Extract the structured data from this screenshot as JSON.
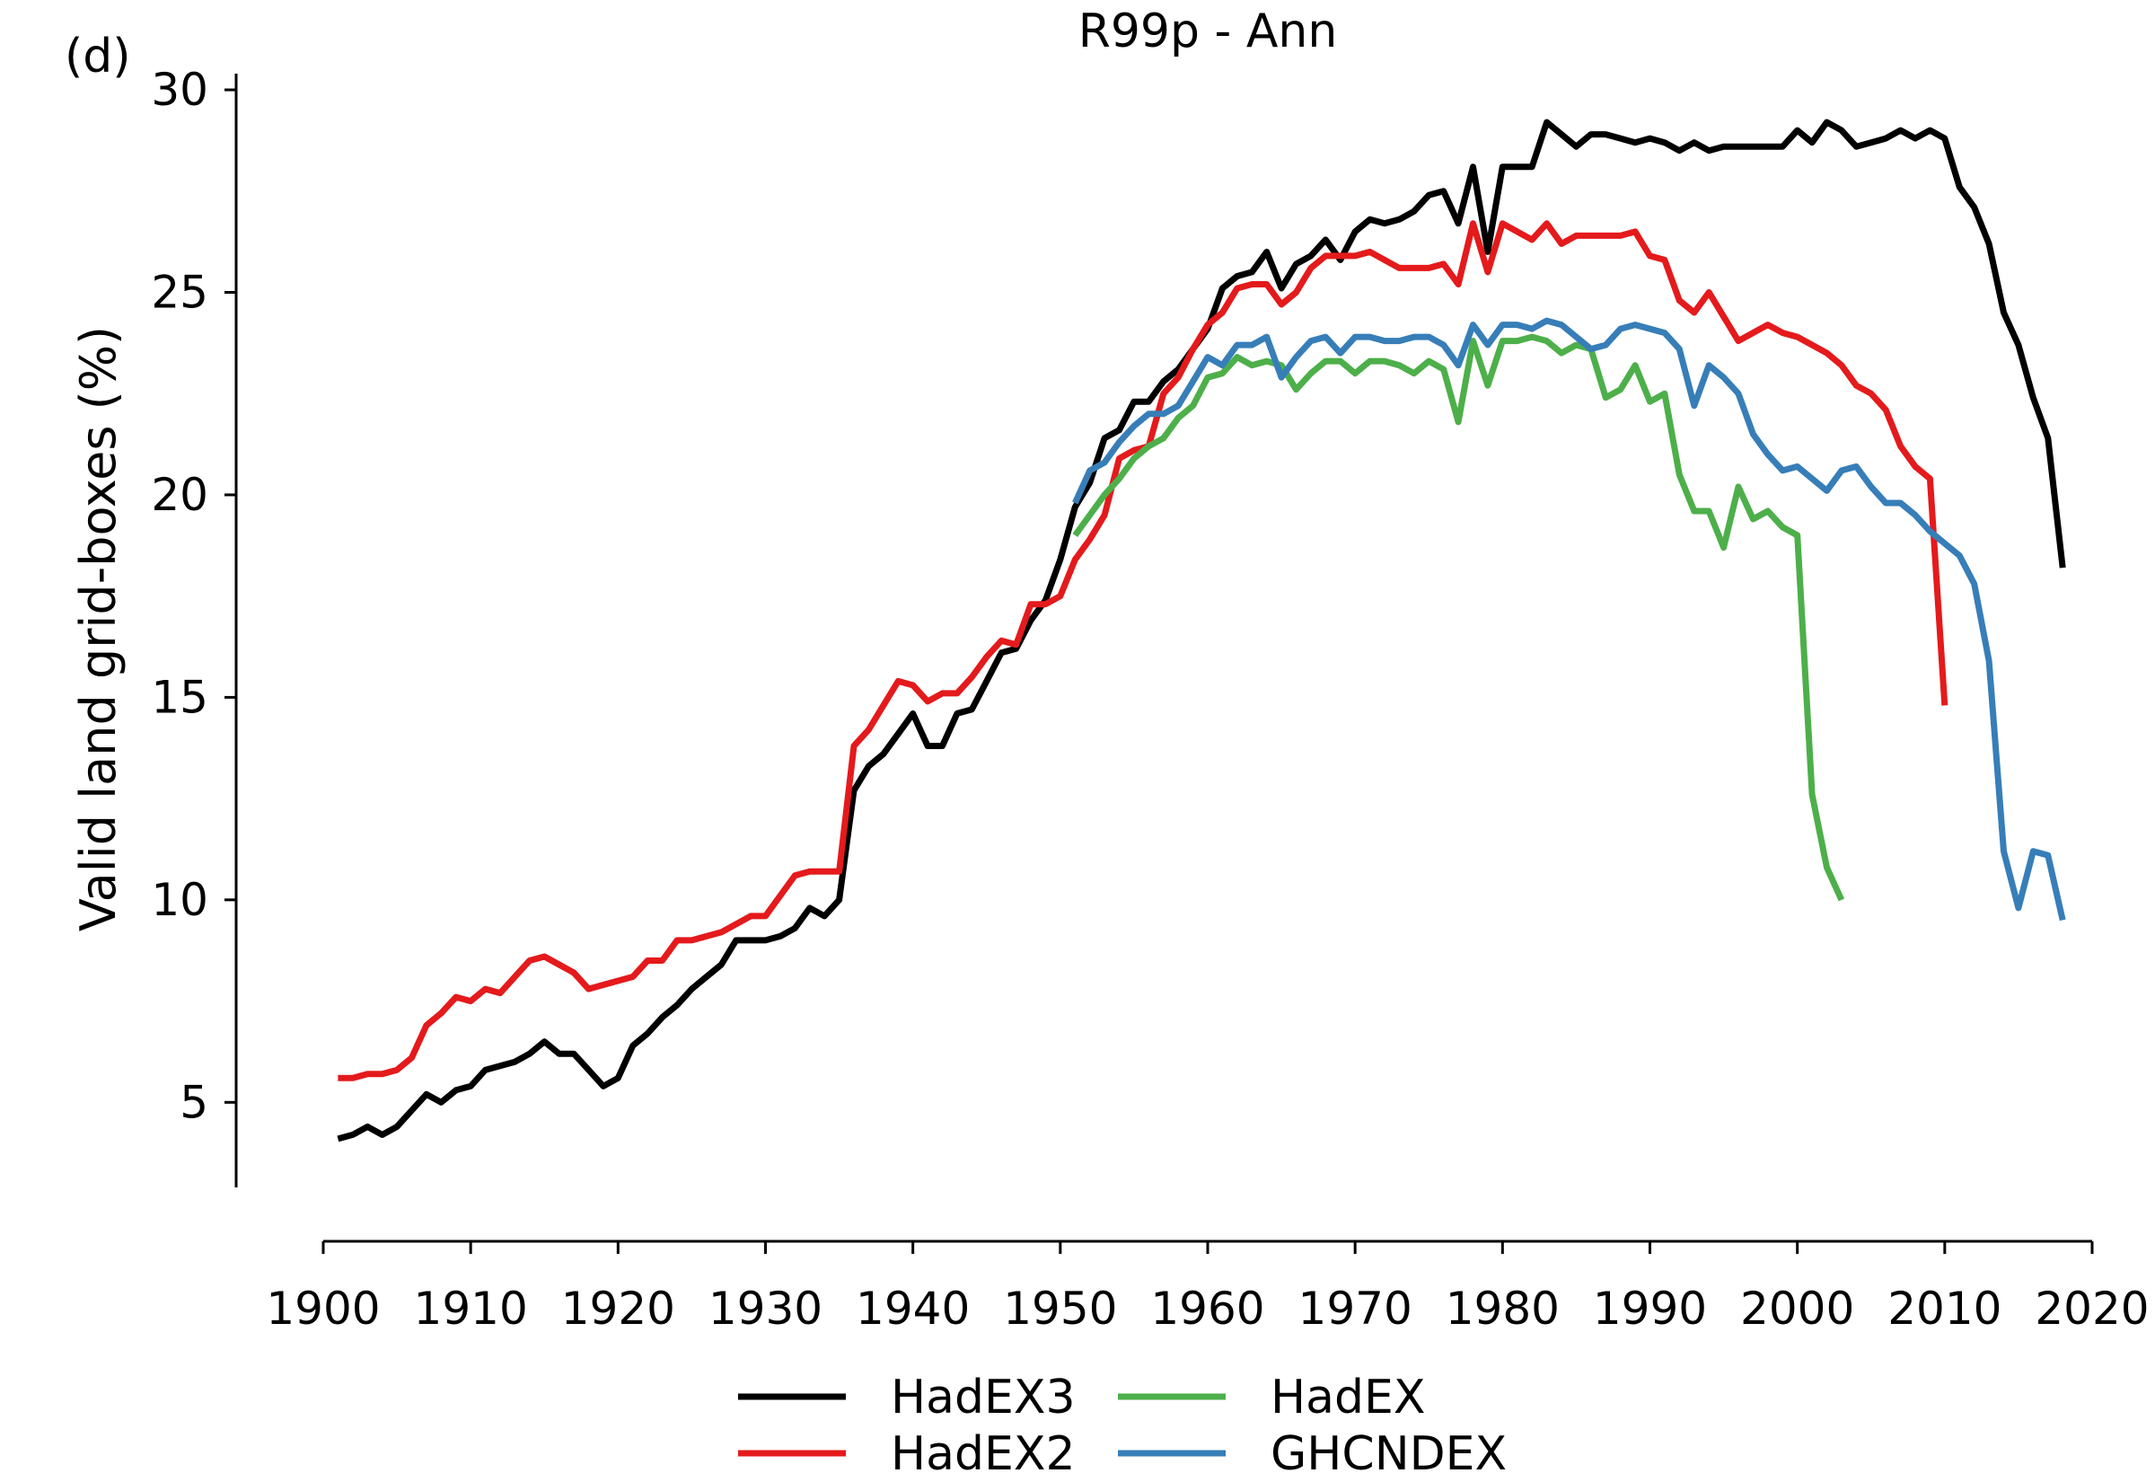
{
  "chart_data": {
    "type": "line",
    "panel_label": "(d)",
    "title": "R99p - Ann",
    "xlabel": "",
    "ylabel": "Valid land grid-boxes (%)",
    "xlim": [
      1900,
      2020
    ],
    "ylim": [
      2.9,
      30.4
    ],
    "x_ticks": [
      1900,
      1910,
      1920,
      1930,
      1940,
      1950,
      1960,
      1970,
      1980,
      1990,
      2000,
      2010,
      2020
    ],
    "y_ticks": [
      5,
      10,
      15,
      20,
      25,
      30
    ],
    "grid": false,
    "legend_position": "bottom-center",
    "series": [
      {
        "name": "HadEX3",
        "color": "#000000",
        "start_year": 1901,
        "values": [
          4.1,
          4.2,
          4.4,
          4.2,
          4.4,
          4.8,
          5.2,
          5.0,
          5.3,
          5.4,
          5.8,
          5.9,
          6.0,
          6.2,
          6.5,
          6.2,
          6.2,
          5.8,
          5.4,
          5.6,
          6.4,
          6.7,
          7.1,
          7.4,
          7.8,
          8.1,
          8.4,
          9.0,
          9.0,
          9.0,
          9.1,
          9.3,
          9.8,
          9.6,
          10.0,
          12.7,
          13.3,
          13.6,
          14.1,
          14.6,
          13.8,
          13.8,
          14.6,
          14.7,
          15.4,
          16.1,
          16.2,
          16.9,
          17.4,
          18.4,
          19.7,
          20.3,
          21.4,
          21.6,
          22.3,
          22.3,
          22.8,
          23.1,
          23.6,
          24.1,
          25.1,
          25.4,
          25.5,
          26.0,
          25.1,
          25.7,
          25.9,
          26.3,
          25.8,
          26.5,
          26.8,
          26.7,
          26.8,
          27.0,
          27.4,
          27.5,
          26.7,
          28.1,
          26.0,
          28.1,
          28.1,
          28.1,
          29.2,
          28.9,
          28.6,
          28.9,
          28.9,
          28.8,
          28.7,
          28.8,
          28.7,
          28.5,
          28.7,
          28.5,
          28.6,
          28.6,
          28.6,
          28.6,
          28.6,
          29.0,
          28.7,
          29.2,
          29.0,
          28.6,
          28.7,
          28.8,
          29.0,
          28.8,
          29.0,
          28.8,
          27.6,
          27.1,
          26.2,
          24.5,
          23.7,
          22.4,
          21.4,
          18.2
        ]
      },
      {
        "name": "HadEX2",
        "color": "#e41a1c",
        "start_year": 1901,
        "values": [
          5.6,
          5.6,
          5.7,
          5.7,
          5.8,
          6.1,
          6.9,
          7.2,
          7.6,
          7.5,
          7.8,
          7.7,
          8.1,
          8.5,
          8.6,
          8.4,
          8.2,
          7.8,
          7.9,
          8.0,
          8.1,
          8.5,
          8.5,
          9.0,
          9.0,
          9.1,
          9.2,
          9.4,
          9.6,
          9.6,
          10.1,
          10.6,
          10.7,
          10.7,
          10.7,
          13.8,
          14.2,
          14.8,
          15.4,
          15.3,
          14.9,
          15.1,
          15.1,
          15.5,
          16.0,
          16.4,
          16.3,
          17.3,
          17.3,
          17.5,
          18.4,
          18.9,
          19.5,
          20.9,
          21.1,
          21.2,
          22.5,
          22.9,
          23.6,
          24.2,
          24.5,
          25.1,
          25.2,
          25.2,
          24.7,
          25.0,
          25.6,
          25.9,
          25.9,
          25.9,
          26.0,
          25.8,
          25.6,
          25.6,
          25.6,
          25.7,
          25.2,
          26.7,
          25.5,
          26.7,
          26.5,
          26.3,
          26.7,
          26.2,
          26.4,
          26.4,
          26.4,
          26.4,
          26.5,
          25.9,
          25.8,
          24.8,
          24.5,
          25.0,
          24.4,
          23.8,
          24.0,
          24.2,
          24.0,
          23.9,
          23.7,
          23.5,
          23.2,
          22.7,
          22.5,
          22.1,
          21.2,
          20.7,
          20.4,
          14.8
        ]
      },
      {
        "name": "HadEX",
        "color": "#4daf4a",
        "start_year": 1951,
        "values": [
          19.0,
          19.5,
          20.0,
          20.4,
          20.9,
          21.2,
          21.4,
          21.9,
          22.2,
          22.9,
          23.0,
          23.4,
          23.2,
          23.3,
          23.2,
          22.6,
          23.0,
          23.3,
          23.3,
          23.0,
          23.3,
          23.3,
          23.2,
          23.0,
          23.3,
          23.1,
          21.8,
          23.8,
          22.7,
          23.8,
          23.8,
          23.9,
          23.8,
          23.5,
          23.7,
          23.6,
          22.4,
          22.6,
          23.2,
          22.3,
          22.5,
          20.5,
          19.6,
          19.6,
          18.7,
          20.2,
          19.4,
          19.6,
          19.2,
          19.0,
          12.6,
          10.8,
          10.0
        ]
      },
      {
        "name": "GHCNDEX",
        "color": "#377eb8",
        "start_year": 1951,
        "values": [
          19.8,
          20.6,
          20.8,
          21.3,
          21.7,
          22.0,
          22.0,
          22.2,
          22.8,
          23.4,
          23.2,
          23.7,
          23.7,
          23.9,
          22.9,
          23.4,
          23.8,
          23.9,
          23.5,
          23.9,
          23.9,
          23.8,
          23.8,
          23.9,
          23.9,
          23.7,
          23.2,
          24.2,
          23.7,
          24.2,
          24.2,
          24.1,
          24.3,
          24.2,
          23.9,
          23.6,
          23.7,
          24.1,
          24.2,
          24.1,
          24.0,
          23.6,
          22.2,
          23.2,
          22.9,
          22.5,
          21.5,
          21.0,
          20.6,
          20.7,
          20.4,
          20.1,
          20.6,
          20.7,
          20.2,
          19.8,
          19.8,
          19.5,
          19.1,
          18.8,
          18.5,
          17.8,
          15.9,
          11.2,
          9.8,
          11.2,
          11.1,
          9.5
        ]
      }
    ]
  }
}
